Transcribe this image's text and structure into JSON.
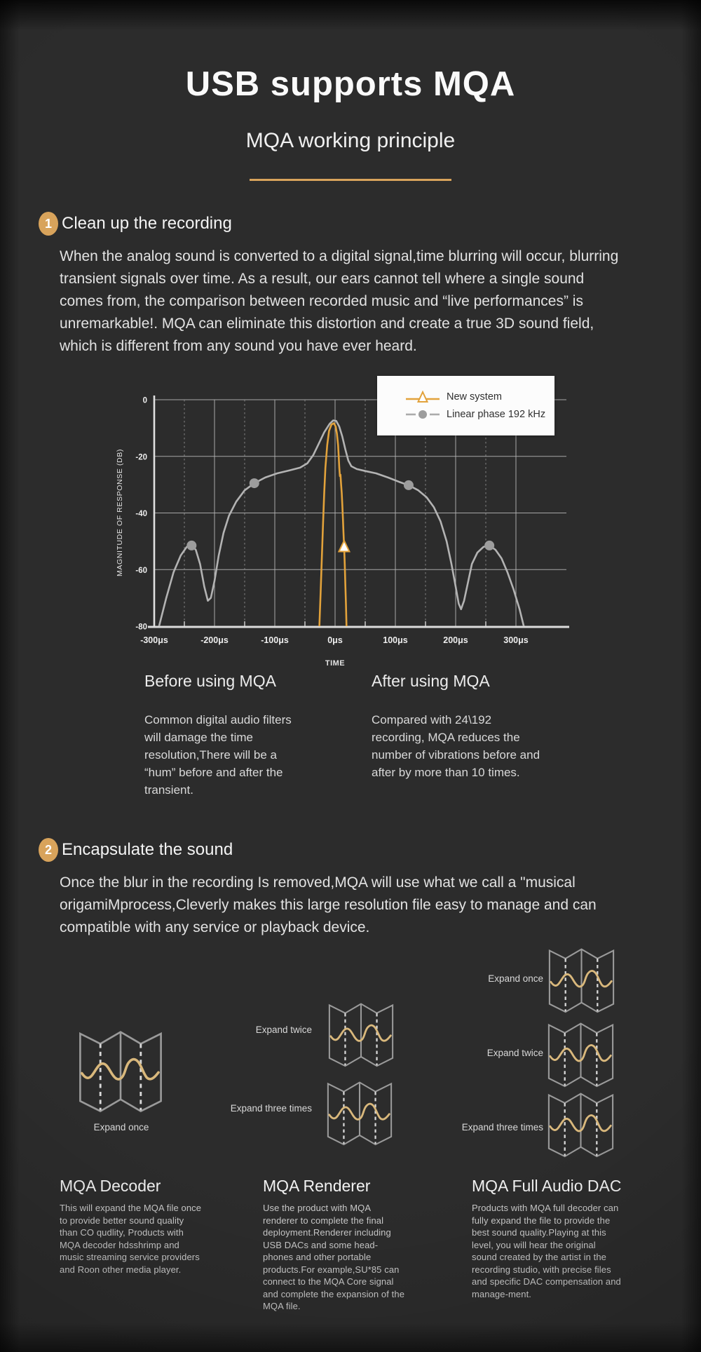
{
  "page": {
    "title": "USB supports MQA",
    "subtitle": "MQA working principle"
  },
  "colors": {
    "accent": "#D8A35B",
    "wave": "#D9B87C",
    "icon_outline": "#9A9A9A",
    "series_new_system": "#E2A23B",
    "series_linear_phase": "#B3B3B3",
    "background": "#2C2C2C"
  },
  "section1": {
    "number": "1",
    "heading": "Clean up the recording",
    "body": "When the analog sound is converted to a digital signal,time blurring will occur, blurring transient signals over time. As a result, our ears cannot tell where a single sound comes from, the comparison between recorded music and “live performances” is unremarkable!. MQA can eliminate this distortion and create a true 3D sound field, which is different from any sound you have ever heard."
  },
  "chart_data": {
    "type": "line",
    "title": "",
    "xlabel": "TIME",
    "ylabel": "MAGNITUDE OF RESPONSE (DB)",
    "x_unit": "μs",
    "xlim": [
      -300,
      300
    ],
    "ylim": [
      -80,
      0
    ],
    "grid": true,
    "legend_position": "top-right",
    "x_ticks": [
      "-300μs",
      "-200μs",
      "-100μs",
      "0μs",
      "100μs",
      "200μs",
      "300μs"
    ],
    "x_tick_values": [
      -300,
      -200,
      -100,
      0,
      100,
      200,
      300
    ],
    "x_minor_ticks": [
      -250,
      -150,
      -50,
      50,
      150,
      250
    ],
    "y_ticks": [
      0,
      -20,
      -40,
      -60,
      -80
    ],
    "series": [
      {
        "name": "New system",
        "color": "#E2A23B",
        "marker": "triangle",
        "marker_points": [
          [
            15,
            -52
          ]
        ],
        "points": [
          [
            -26,
            -80
          ],
          [
            -24,
            -68
          ],
          [
            -22,
            -56
          ],
          [
            -20,
            -44
          ],
          [
            -18,
            -33
          ],
          [
            -16,
            -24
          ],
          [
            -13,
            -16
          ],
          [
            -10,
            -11
          ],
          [
            -6,
            -8.8
          ],
          [
            -2,
            -8.3
          ],
          [
            1,
            -9.5
          ],
          [
            3,
            -12
          ],
          [
            5,
            -16
          ],
          [
            6,
            -20
          ],
          [
            7,
            -24
          ],
          [
            8,
            -27
          ],
          [
            9,
            -26.5
          ],
          [
            10,
            -30
          ],
          [
            11,
            -33
          ],
          [
            12,
            -37
          ],
          [
            13,
            -42
          ],
          [
            14,
            -47
          ],
          [
            15,
            -52
          ],
          [
            16,
            -58
          ],
          [
            17,
            -65
          ],
          [
            18,
            -72
          ],
          [
            19,
            -80
          ]
        ]
      },
      {
        "name": "Linear phase 192 kHz",
        "color": "#B3B3B3",
        "marker": "circle",
        "marker_points": [
          [
            -238,
            -51.5
          ],
          [
            -134,
            -29.5
          ],
          [
            122,
            -30.2
          ],
          [
            256,
            -51.5
          ]
        ],
        "points": [
          [
            -292,
            -80
          ],
          [
            -280,
            -70
          ],
          [
            -268,
            -61
          ],
          [
            -256,
            -55
          ],
          [
            -246,
            -52
          ],
          [
            -238,
            -51.5
          ],
          [
            -231,
            -53
          ],
          [
            -224,
            -58
          ],
          [
            -217,
            -66
          ],
          [
            -211,
            -71
          ],
          [
            -206,
            -70
          ],
          [
            -200,
            -64
          ],
          [
            -193,
            -55
          ],
          [
            -185,
            -47
          ],
          [
            -176,
            -41
          ],
          [
            -164,
            -36
          ],
          [
            -150,
            -32
          ],
          [
            -134,
            -29.5
          ],
          [
            -116,
            -27.5
          ],
          [
            -96,
            -26
          ],
          [
            -76,
            -25
          ],
          [
            -58,
            -24
          ],
          [
            -46,
            -22.5
          ],
          [
            -36,
            -19.5
          ],
          [
            -27,
            -15.5
          ],
          [
            -18,
            -11.5
          ],
          [
            -9,
            -8.5
          ],
          [
            -3,
            -7.3
          ],
          [
            2,
            -7.5
          ],
          [
            7,
            -9.5
          ],
          [
            12,
            -13
          ],
          [
            17,
            -17.5
          ],
          [
            22,
            -21.5
          ],
          [
            27,
            -23.5
          ],
          [
            36,
            -24.5
          ],
          [
            50,
            -25.2
          ],
          [
            68,
            -26
          ],
          [
            88,
            -27.5
          ],
          [
            106,
            -29
          ],
          [
            122,
            -30.2
          ],
          [
            138,
            -32
          ],
          [
            152,
            -34.5
          ],
          [
            164,
            -38
          ],
          [
            175,
            -43
          ],
          [
            185,
            -50
          ],
          [
            193,
            -58
          ],
          [
            200,
            -66
          ],
          [
            205,
            -72
          ],
          [
            209,
            -74
          ],
          [
            214,
            -71
          ],
          [
            220,
            -65
          ],
          [
            227,
            -58
          ],
          [
            236,
            -54
          ],
          [
            246,
            -52
          ],
          [
            256,
            -51.5
          ],
          [
            266,
            -53
          ],
          [
            276,
            -56
          ],
          [
            286,
            -61
          ],
          [
            296,
            -67
          ],
          [
            306,
            -74
          ],
          [
            313,
            -80
          ]
        ]
      }
    ]
  },
  "comparison": {
    "before": {
      "heading": "Before using MQA",
      "body": "Common digital audio filters will damage the time resolution,There will be a “hum” before and after the transient."
    },
    "after": {
      "heading": "After using MQA",
      "body": "Compared with 24\\192 recording, MQA reduces the number of vibrations before and after by more than 10 times."
    }
  },
  "section2": {
    "number": "2",
    "heading": "Encapsulate the sound",
    "body": "Once the blur in the recording Is removed,MQA will use what we call a \"musical origamiMprocess,Cleverly makes this large resolution file easy to manage and can compatible with any service or playback device."
  },
  "columns": [
    {
      "heading": "MQA Decoder",
      "labels": [
        "Expand once"
      ],
      "body": "This will expand the MQA file once to provide better sound quality than CO qudlity, Products with MQA decoder hdsshrimp and music streaming service providers and Roon other media player."
    },
    {
      "heading": "MQA Renderer",
      "labels": [
        "Expand twice",
        "Expand three times"
      ],
      "body": "Use the product with MQA renderer to complete the final deployment.Renderer including USB DACs and some head-phones and other portable products.For example,SU*85 can connect to the MQA Core signal and complete the expansion of the MQA file."
    },
    {
      "heading": "MQA Full Audio DAC",
      "labels": [
        "Expand once",
        "Expand twice",
        "Expand three times"
      ],
      "body": "Products with MQA full decoder can fully expand the file to provide the best sound quality.Playing at this level, you will hear the original sound created by the artist in the recording studio, with precise files and specific DAC compensation and manage-ment."
    }
  ]
}
